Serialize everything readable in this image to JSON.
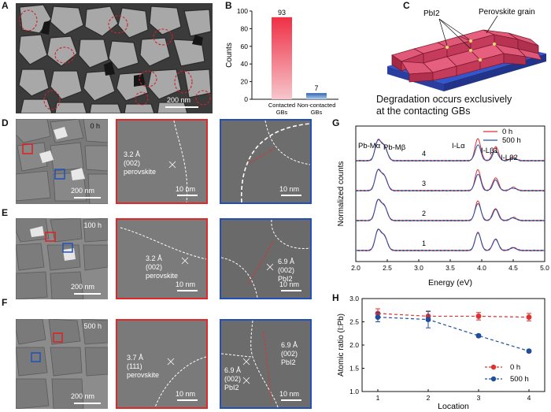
{
  "panel_labels": {
    "A": "A",
    "B": "B",
    "C": "C",
    "D": "D",
    "E": "E",
    "F": "F",
    "G": "G",
    "H": "H"
  },
  "panelA": {
    "scale_bar": "200 nm"
  },
  "panelB": {
    "chart_data": {
      "type": "bar",
      "categories": [
        "Contacted GBs",
        "Non-contacted GBs"
      ],
      "category_lines": [
        [
          "Contacted",
          "GBs"
        ],
        [
          "Non-contacted",
          "GBs"
        ]
      ],
      "values": [
        93,
        7
      ],
      "value_labels": [
        "93",
        "7"
      ],
      "ylabel": "Counts",
      "ylim": [
        0,
        100
      ],
      "yticks": [
        0,
        20,
        40,
        60,
        80,
        100
      ],
      "colors": [
        "#e74c5c",
        "#3a6db5"
      ]
    }
  },
  "panelC": {
    "label_pbi2": "PbI2",
    "label_grain": "Perovskite grain",
    "caption_line1": "Degradation occurs exclusively",
    "caption_line2": "at the contacting GBs"
  },
  "rows": {
    "D": {
      "time": "0 h",
      "scale_bar": "200 nm",
      "mid_text": [
        "3.2 Å",
        "(002)",
        "perovskite"
      ],
      "mid_scale": "10 nm",
      "right_text": [],
      "right_scale": "10 nm"
    },
    "E": {
      "time": "100 h",
      "scale_bar": "200 nm",
      "mid_text": [
        "3.2 Å",
        "(002)",
        "perovskite"
      ],
      "mid_scale": "10 nm",
      "right_text": [
        "6.9 Å",
        "(002)",
        "PbI2"
      ],
      "right_scale": "10 nm"
    },
    "F": {
      "time": "500 h",
      "scale_bar": "200 nm",
      "mid_text": [
        "3.7 Å",
        "(111)",
        "perovskite"
      ],
      "mid_scale": "10 nm",
      "right_text_left": [
        "6.9 Å",
        "(002)",
        "PbI2"
      ],
      "right_text": [
        "6.9 Å",
        "(002)",
        "PbI2"
      ],
      "right_scale": "10 nm"
    }
  },
  "panelG": {
    "chart_data": {
      "type": "line",
      "xlabel": "Energy (eV)",
      "ylabel": "Normalized counts",
      "xlim": [
        2.0,
        5.0
      ],
      "xticks": [
        "2.0",
        "2.5",
        "3.0",
        "3.5",
        "4.0",
        "4.5",
        "5.0"
      ],
      "series": [
        {
          "name": "0 h",
          "color": "#e03030"
        },
        {
          "name": "500 h",
          "color": "#2050b0"
        }
      ],
      "traces": [
        "1",
        "2",
        "3",
        "4"
      ],
      "peak_labels": [
        "Pb-Mα",
        "Pb-Mβ",
        "I-Lα",
        "I-Lβ1",
        "I-Lβ2"
      ]
    }
  },
  "panelH": {
    "chart_data": {
      "type": "scatter",
      "xlabel": "Location",
      "ylabel": "Atomic ratio (I:Pb)",
      "x": [
        1,
        2,
        3,
        4
      ],
      "xticks": [
        "1",
        "2",
        "3",
        "4"
      ],
      "ylim": [
        1.0,
        3.0
      ],
      "yticks": [
        "1.0",
        "1.5",
        "2.0",
        "2.5",
        "3.0"
      ],
      "series": [
        {
          "name": "0 h",
          "color": "#e03030",
          "values": [
            2.68,
            2.62,
            2.62,
            2.6
          ],
          "errors": [
            0.1,
            0.1,
            0.08,
            0.08
          ]
        },
        {
          "name": "500 h",
          "color": "#1f4f9c",
          "values": [
            2.6,
            2.55,
            2.2,
            1.87
          ],
          "errors": [
            0.1,
            0.18,
            0.03,
            0.03
          ]
        }
      ]
    }
  }
}
